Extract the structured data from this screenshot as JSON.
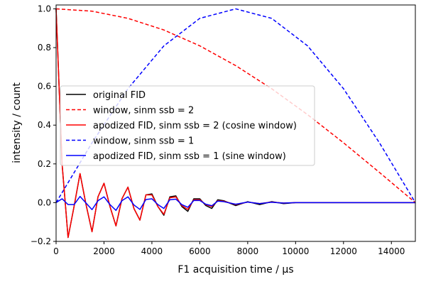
{
  "chart_data": {
    "type": "line",
    "title": "",
    "xlabel": "F1 acquisition time / μs",
    "ylabel": "intensity / count",
    "xlim": [
      0,
      15000
    ],
    "ylim": [
      -0.2,
      1.02
    ],
    "xticks": [
      0,
      2000,
      4000,
      6000,
      8000,
      10000,
      12000,
      14000
    ],
    "yticks": [
      -0.2,
      0.0,
      0.2,
      0.4,
      0.6,
      0.8,
      1.0
    ],
    "xtick_labels": [
      "0",
      "2000",
      "4000",
      "6000",
      "8000",
      "10000",
      "12000",
      "14000"
    ],
    "ytick_labels": [
      "−0.2",
      "0.0",
      "0.2",
      "0.4",
      "0.6",
      "0.8",
      "1.0"
    ],
    "grid": false,
    "legend_position": "center-left",
    "series": [
      {
        "name": "original FID",
        "color": "#000000",
        "style": "solid",
        "x": [
          0,
          250,
          500,
          750,
          1000,
          1250,
          1500,
          1750,
          2000,
          2250,
          2500,
          2750,
          3000,
          3250,
          3500,
          3750,
          4000,
          4250,
          4500,
          4750,
          5000,
          5250,
          5500,
          5750,
          6000,
          6250,
          6500,
          6750,
          7000,
          7500,
          8000,
          8500,
          9000,
          9500,
          10000,
          11000,
          12000,
          13000,
          14000,
          15000
        ],
        "y": [
          1.0,
          0.2,
          -0.18,
          -0.02,
          0.15,
          -0.01,
          -0.15,
          0.03,
          0.1,
          -0.02,
          -0.12,
          0.02,
          0.08,
          -0.03,
          -0.09,
          0.04,
          0.045,
          -0.02,
          -0.065,
          0.03,
          0.035,
          -0.02,
          -0.045,
          0.02,
          0.02,
          -0.015,
          -0.03,
          0.015,
          0.01,
          -0.015,
          0.005,
          -0.01,
          0.005,
          -0.005,
          0.0,
          0.0,
          0.0,
          0.0,
          0.0,
          0.0
        ]
      },
      {
        "name": "window, sinm ssb = 2",
        "color": "#ff0000",
        "style": "dashed",
        "function": "cos(pi*x/(2*15000))",
        "x": [
          0,
          1500,
          3000,
          4500,
          6000,
          7500,
          9000,
          10500,
          12000,
          13500,
          15000
        ],
        "y": [
          1.0,
          0.988,
          0.951,
          0.891,
          0.809,
          0.707,
          0.588,
          0.454,
          0.309,
          0.156,
          0.0
        ]
      },
      {
        "name": "apodized FID, sinm ssb = 2 (cosine window)",
        "color": "#ff0000",
        "style": "solid",
        "x": [
          0,
          250,
          500,
          750,
          1000,
          1250,
          1500,
          1750,
          2000,
          2250,
          2500,
          2750,
          3000,
          3250,
          3500,
          3750,
          4000,
          4250,
          4500,
          4750,
          5000,
          5250,
          5500,
          5750,
          6000,
          6250,
          6500,
          6750,
          7000,
          7500,
          8000,
          8500,
          9000,
          9500,
          10000,
          11000,
          12000,
          13000,
          14000,
          15000
        ],
        "y": [
          1.0,
          0.2,
          -0.18,
          -0.02,
          0.15,
          -0.01,
          -0.15,
          0.03,
          0.1,
          -0.02,
          -0.12,
          0.02,
          0.08,
          -0.03,
          -0.09,
          0.04,
          0.04,
          -0.02,
          -0.06,
          0.025,
          0.03,
          -0.015,
          -0.035,
          0.015,
          0.015,
          -0.01,
          -0.02,
          0.01,
          0.007,
          -0.01,
          0.003,
          -0.005,
          0.003,
          -0.002,
          0.0,
          0.0,
          0.0,
          0.0,
          0.0,
          0.0
        ]
      },
      {
        "name": "window, sinm ssb = 1",
        "color": "#0000ff",
        "style": "dashed",
        "function": "sin(pi*x/15000)",
        "x": [
          0,
          1500,
          3000,
          4500,
          6000,
          7500,
          9000,
          10500,
          12000,
          13500,
          15000
        ],
        "y": [
          0.0,
          0.309,
          0.588,
          0.809,
          0.951,
          1.0,
          0.951,
          0.809,
          0.588,
          0.309,
          0.0
        ]
      },
      {
        "name": "apodized FID, sinm ssb = 1 (sine window)",
        "color": "#0000ff",
        "style": "solid",
        "x": [
          0,
          250,
          500,
          750,
          1000,
          1250,
          1500,
          1750,
          2000,
          2250,
          2500,
          2750,
          3000,
          3250,
          3500,
          3750,
          4000,
          4250,
          4500,
          4750,
          5000,
          5250,
          5500,
          5750,
          6000,
          6250,
          6500,
          6750,
          7000,
          7500,
          8000,
          8500,
          9000,
          9500,
          10000,
          11000,
          12000,
          13000,
          14000,
          15000
        ],
        "y": [
          0.0,
          0.02,
          -0.01,
          -0.01,
          0.032,
          -0.002,
          -0.036,
          0.01,
          0.03,
          -0.01,
          -0.04,
          0.01,
          0.03,
          -0.012,
          -0.035,
          0.016,
          0.02,
          -0.01,
          -0.03,
          0.015,
          0.018,
          -0.01,
          -0.024,
          0.011,
          0.011,
          -0.008,
          -0.016,
          0.008,
          0.005,
          -0.008,
          0.003,
          -0.005,
          0.002,
          -0.002,
          0.0,
          0.0,
          0.0,
          0.0,
          0.0,
          0.0
        ]
      }
    ]
  }
}
